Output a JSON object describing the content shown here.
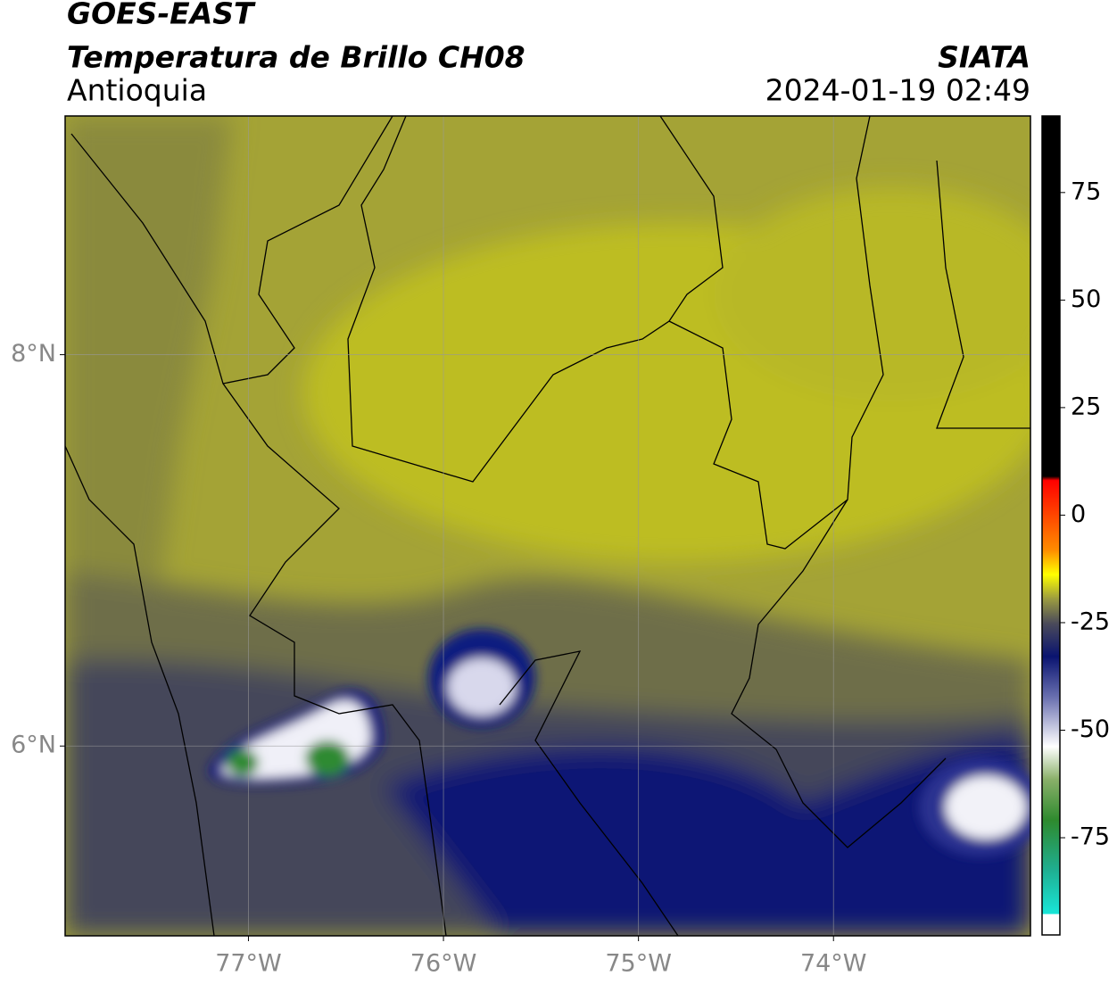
{
  "header": {
    "title": "GOES-EAST",
    "subtitle": "Temperatura de Brillo CH08",
    "region": "Antioquia",
    "source": "SIATA",
    "datetime": "2024-01-19 02:49"
  },
  "map": {
    "xlim": [
      -77.94,
      -72.99
    ],
    "ylim": [
      5.03,
      9.22
    ],
    "xticks": [
      {
        "value": -77,
        "label": "77°W"
      },
      {
        "value": -76,
        "label": "76°W"
      },
      {
        "value": -75,
        "label": "75°W"
      },
      {
        "value": -74,
        "label": "74°W"
      }
    ],
    "yticks": [
      {
        "value": 8,
        "label": "8°N"
      },
      {
        "value": 6,
        "label": "6°N"
      }
    ],
    "grid": true
  },
  "colorbar": {
    "clim": [
      -97.6,
      92.8
    ],
    "ticks": [
      75,
      50,
      25,
      0,
      -25,
      -50,
      -75
    ]
  }
}
